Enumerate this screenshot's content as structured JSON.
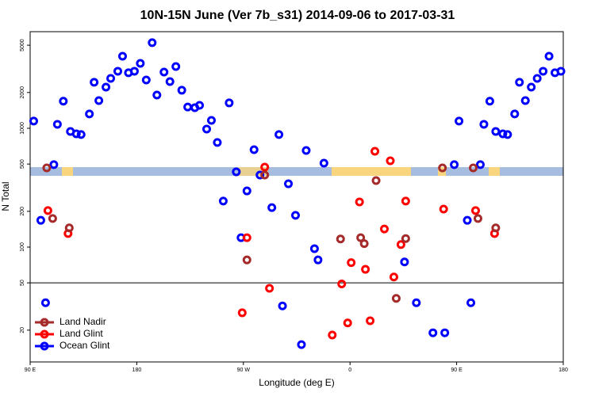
{
  "chart_data": {
    "type": "scatter",
    "title": "10N-15N June (Ver 7b_s31)   2014-09-06 to 2017-03-31",
    "xlabel": "Longitude (deg E)",
    "ylabel": "N Total",
    "xlim": [
      90,
      540
    ],
    "ylim": [
      10.8,
      6500
    ],
    "log_y": true,
    "hline": 50,
    "xticks": [
      {
        "value": 90,
        "label": "90 E"
      },
      {
        "value": 180,
        "label": "180"
      },
      {
        "value": 270,
        "label": "90 W"
      },
      {
        "value": 360,
        "label": "0"
      },
      {
        "value": 450,
        "label": "90 E"
      },
      {
        "value": 540,
        "label": "180"
      }
    ],
    "yticks": [
      20,
      50,
      100,
      200,
      500,
      1000,
      2000,
      5000
    ],
    "legend": "bottom-left",
    "series": [
      {
        "name": "Land Nadir",
        "color": "#a52a2a",
        "x": [
          104,
          109,
          123,
          273,
          288,
          352,
          369,
          372,
          382,
          399,
          407,
          438,
          464,
          468,
          483
        ],
        "values": [
          464,
          174,
          145,
          78,
          404,
          117,
          120,
          107,
          363,
          37,
          118,
          464,
          464,
          174,
          145
        ]
      },
      {
        "name": "Land Glint",
        "color": "#ff0000",
        "x": [
          105,
          122,
          273,
          269,
          288,
          292,
          345,
          353,
          358,
          361,
          368,
          373,
          377,
          381,
          389,
          394,
          397,
          403,
          407,
          439,
          466,
          482
        ],
        "values": [
          203,
          130,
          120,
          28,
          471,
          45,
          18.2,
          49,
          23,
          74,
          240,
          65,
          24,
          640,
          142,
          533,
          56,
          105,
          244,
          209,
          203,
          130
        ]
      },
      {
        "name": "Ocean Glint",
        "color": "#0000ff",
        "x": [
          93,
          99,
          103,
          110,
          113,
          118,
          124,
          129,
          133,
          140,
          144,
          148,
          154,
          158,
          164,
          168,
          173,
          178,
          183,
          188,
          193,
          197,
          203,
          208,
          213,
          218,
          223,
          229,
          233,
          239,
          243,
          248,
          253,
          258,
          264,
          268,
          273,
          279,
          284,
          294,
          300,
          303,
          308,
          314,
          323,
          330,
          333,
          338,
          319,
          406,
          416,
          430,
          440,
          448,
          452,
          459,
          462,
          470,
          473,
          478,
          483,
          489,
          493,
          499,
          503,
          508,
          513,
          518,
          523,
          528,
          533,
          538
        ],
        "values": [
          1150,
          168,
          34,
          494,
          1080,
          1690,
          940,
          898,
          885,
          1320,
          2440,
          1710,
          2220,
          2630,
          3020,
          4040,
          2930,
          3020,
          3520,
          2550,
          5250,
          1905,
          2970,
          2470,
          3310,
          2090,
          1510,
          1490,
          1560,
          985,
          1165,
          760,
          244,
          1635,
          430,
          120,
          297,
          660,
          404,
          215,
          885,
          32,
          341,
          185,
          650,
          97,
          78,
          509,
          15.1,
          75,
          34,
          19,
          19,
          494,
          1150,
          168,
          34,
          494,
          1080,
          1690,
          940,
          898,
          885,
          1320,
          2440,
          1710,
          2220,
          2630,
          3020,
          4040,
          2930,
          3020
        ]
      }
    ]
  }
}
